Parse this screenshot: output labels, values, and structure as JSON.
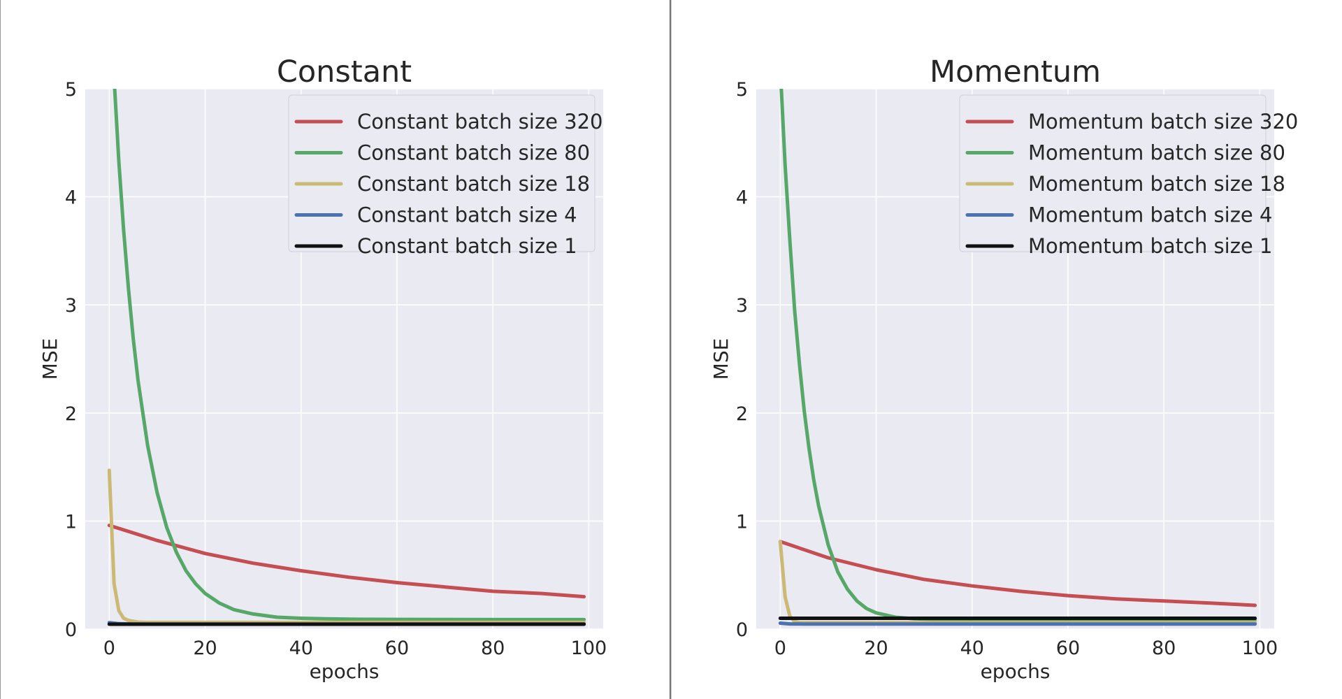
{
  "chart_data": [
    {
      "type": "line",
      "title": "Constant",
      "xlabel": "epochs",
      "ylabel": "MSE",
      "xlim": [
        -5,
        103
      ],
      "ylim": [
        0,
        5
      ],
      "xticks": [
        0,
        20,
        40,
        60,
        80,
        100
      ],
      "yticks": [
        0,
        1,
        2,
        3,
        4,
        5
      ],
      "grid": true,
      "legend_position": "top-right",
      "series": [
        {
          "name": "Constant batch size 320",
          "color": "#c44e52",
          "x": [
            0,
            10,
            20,
            30,
            40,
            50,
            60,
            70,
            80,
            90,
            99
          ],
          "values": [
            0.96,
            0.82,
            0.7,
            0.61,
            0.54,
            0.48,
            0.43,
            0.39,
            0.35,
            0.33,
            0.3
          ]
        },
        {
          "name": "Constant batch size 80",
          "color": "#55a868",
          "x": [
            0,
            1,
            2,
            3,
            4,
            5,
            6,
            8,
            10,
            12,
            14,
            16,
            18,
            20,
            23,
            26,
            30,
            35,
            40,
            45,
            50,
            60,
            70,
            80,
            90,
            99
          ],
          "values": [
            6.0,
            5.1,
            4.33,
            3.69,
            3.15,
            2.69,
            2.3,
            1.7,
            1.26,
            0.94,
            0.71,
            0.54,
            0.42,
            0.33,
            0.24,
            0.18,
            0.14,
            0.11,
            0.1,
            0.095,
            0.092,
            0.09,
            0.089,
            0.088,
            0.088,
            0.088
          ]
        },
        {
          "name": "Constant batch size 18",
          "color": "#ccb974",
          "x": [
            0,
            1,
            2,
            3,
            4,
            6,
            8,
            10,
            20,
            40,
            60,
            80,
            99
          ],
          "values": [
            1.47,
            0.42,
            0.17,
            0.1,
            0.08,
            0.065,
            0.062,
            0.062,
            0.062,
            0.062,
            0.062,
            0.062,
            0.062
          ]
        },
        {
          "name": "Constant batch size 4",
          "color": "#4c72b0",
          "x": [
            0,
            2,
            5,
            10,
            20,
            40,
            60,
            80,
            99
          ],
          "values": [
            0.06,
            0.05,
            0.048,
            0.047,
            0.047,
            0.047,
            0.047,
            0.047,
            0.047
          ]
        },
        {
          "name": "Constant batch size 1",
          "color": "#111111",
          "x": [
            0,
            10,
            20,
            40,
            60,
            80,
            99
          ],
          "values": [
            0.045,
            0.045,
            0.045,
            0.045,
            0.045,
            0.045,
            0.045
          ]
        }
      ]
    },
    {
      "type": "line",
      "title": "Momentum",
      "xlabel": "epochs",
      "ylabel": "MSE",
      "xlim": [
        -5,
        103
      ],
      "ylim": [
        0,
        5
      ],
      "xticks": [
        0,
        20,
        40,
        60,
        80,
        100
      ],
      "yticks": [
        0,
        1,
        2,
        3,
        4,
        5
      ],
      "grid": true,
      "legend_position": "top-right",
      "series": [
        {
          "name": "Momentum batch size 320",
          "color": "#c44e52",
          "x": [
            0,
            10,
            20,
            30,
            40,
            50,
            60,
            70,
            80,
            90,
            99
          ],
          "values": [
            0.81,
            0.66,
            0.55,
            0.46,
            0.4,
            0.35,
            0.31,
            0.28,
            0.26,
            0.24,
            0.22
          ]
        },
        {
          "name": "Momentum batch size 80",
          "color": "#55a868",
          "x": [
            0,
            1,
            2,
            3,
            4,
            5,
            6,
            7,
            8,
            10,
            12,
            14,
            16,
            18,
            20,
            24,
            28,
            32,
            36,
            40,
            50,
            60,
            80,
            99
          ],
          "values": [
            5.2,
            4.3,
            3.6,
            2.95,
            2.45,
            2.02,
            1.67,
            1.38,
            1.14,
            0.78,
            0.53,
            0.37,
            0.26,
            0.19,
            0.15,
            0.11,
            0.095,
            0.09,
            0.088,
            0.087,
            0.087,
            0.087,
            0.087,
            0.087
          ]
        },
        {
          "name": "Momentum batch size 18",
          "color": "#ccb974",
          "x": [
            0,
            1,
            2,
            3,
            4,
            6,
            10,
            20,
            40,
            60,
            80,
            99
          ],
          "values": [
            0.81,
            0.3,
            0.12,
            0.07,
            0.06,
            0.06,
            0.06,
            0.06,
            0.06,
            0.06,
            0.06,
            0.06
          ]
        },
        {
          "name": "Momentum batch size 4",
          "color": "#4c72b0",
          "x": [
            0,
            2,
            5,
            10,
            20,
            40,
            60,
            80,
            99
          ],
          "values": [
            0.055,
            0.048,
            0.047,
            0.047,
            0.047,
            0.047,
            0.047,
            0.047,
            0.047
          ]
        },
        {
          "name": "Momentum batch size 1",
          "color": "#111111",
          "x": [
            0,
            10,
            20,
            40,
            60,
            80,
            99
          ],
          "values": [
            0.1,
            0.1,
            0.1,
            0.1,
            0.1,
            0.1,
            0.1
          ]
        }
      ]
    }
  ]
}
